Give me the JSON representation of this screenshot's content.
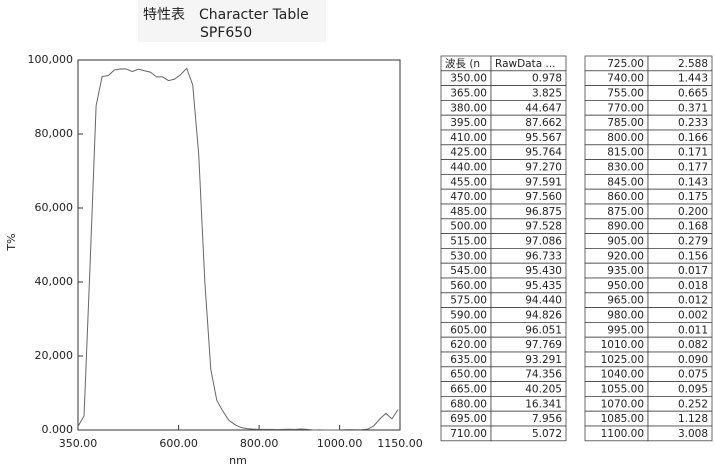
{
  "header": {
    "title": "特性表　Character Table",
    "subtitle": "SPF650"
  },
  "chart_data": {
    "type": "line",
    "xlabel": "nm",
    "ylabel": "T%",
    "color": "#666666",
    "xlim": [
      350,
      1150
    ],
    "ylim": [
      0,
      100
    ],
    "xticks": [
      {
        "value": 350,
        "label": "350.00"
      },
      {
        "value": 600,
        "label": "600.00"
      },
      {
        "value": 800,
        "label": "800.00"
      },
      {
        "value": 1000,
        "label": "1000.00"
      },
      {
        "value": 1150,
        "label": "1150.00"
      }
    ],
    "yticks": [
      {
        "value": 0,
        "label": "0.000"
      },
      {
        "value": 20,
        "label": "20,000"
      },
      {
        "value": 40,
        "label": "40,000"
      },
      {
        "value": 60,
        "label": "60,000"
      },
      {
        "value": 80,
        "label": "80,000"
      },
      {
        "value": 100,
        "label": "100,000"
      }
    ],
    "x": [
      350,
      365,
      380,
      395,
      410,
      425,
      440,
      455,
      470,
      485,
      500,
      515,
      530,
      545,
      560,
      575,
      590,
      605,
      620,
      635,
      650,
      665,
      680,
      695,
      710,
      725,
      740,
      755,
      770,
      785,
      800,
      815,
      830,
      845,
      860,
      875,
      890,
      905,
      920,
      935,
      950,
      965,
      980,
      995,
      1010,
      1025,
      1040,
      1055,
      1070,
      1085,
      1100,
      1115,
      1130,
      1145
    ],
    "values": [
      0.978,
      3.825,
      44.647,
      87.662,
      95.567,
      95.764,
      97.27,
      97.591,
      97.56,
      96.875,
      97.528,
      97.086,
      96.733,
      95.43,
      95.435,
      94.44,
      94.826,
      96.051,
      97.769,
      93.291,
      74.356,
      40.205,
      16.341,
      7.956,
      5.072,
      2.588,
      1.443,
      0.665,
      0.371,
      0.233,
      0.166,
      0.171,
      0.177,
      0.143,
      0.175,
      0.2,
      0.168,
      0.279,
      0.156,
      0.017,
      0.018,
      0.012,
      0.002,
      0.011,
      0.082,
      0.09,
      0.075,
      0.095,
      0.252,
      1.128,
      3.008,
      4.5,
      3.0,
      5.5
    ]
  },
  "tables": [
    {
      "columns": [
        "波長 (n",
        "RawData ..."
      ],
      "rows": [
        [
          "350.00",
          "0.978"
        ],
        [
          "365.00",
          "3.825"
        ],
        [
          "380.00",
          "44.647"
        ],
        [
          "395.00",
          "87.662"
        ],
        [
          "410.00",
          "95.567"
        ],
        [
          "425.00",
          "95.764"
        ],
        [
          "440.00",
          "97.270"
        ],
        [
          "455.00",
          "97.591"
        ],
        [
          "470.00",
          "97.560"
        ],
        [
          "485.00",
          "96.875"
        ],
        [
          "500.00",
          "97.528"
        ],
        [
          "515.00",
          "97.086"
        ],
        [
          "530.00",
          "96.733"
        ],
        [
          "545.00",
          "95.430"
        ],
        [
          "560.00",
          "95.435"
        ],
        [
          "575.00",
          "94.440"
        ],
        [
          "590.00",
          "94.826"
        ],
        [
          "605.00",
          "96.051"
        ],
        [
          "620.00",
          "97.769"
        ],
        [
          "635.00",
          "93.291"
        ],
        [
          "650.00",
          "74.356"
        ],
        [
          "665.00",
          "40.205"
        ],
        [
          "680.00",
          "16.341"
        ],
        [
          "695.00",
          "7.956"
        ],
        [
          "710.00",
          "5.072"
        ]
      ]
    },
    {
      "rows": [
        [
          "725.00",
          "2.588"
        ],
        [
          "740.00",
          "1.443"
        ],
        [
          "755.00",
          "0.665"
        ],
        [
          "770.00",
          "0.371"
        ],
        [
          "785.00",
          "0.233"
        ],
        [
          "800.00",
          "0.166"
        ],
        [
          "815.00",
          "0.171"
        ],
        [
          "830.00",
          "0.177"
        ],
        [
          "845.00",
          "0.143"
        ],
        [
          "860.00",
          "0.175"
        ],
        [
          "875.00",
          "0.200"
        ],
        [
          "890.00",
          "0.168"
        ],
        [
          "905.00",
          "0.279"
        ],
        [
          "920.00",
          "0.156"
        ],
        [
          "935.00",
          "0.017"
        ],
        [
          "950.00",
          "0.018"
        ],
        [
          "965.00",
          "0.012"
        ],
        [
          "980.00",
          "0.002"
        ],
        [
          "995.00",
          "0.011"
        ],
        [
          "1010.00",
          "0.082"
        ],
        [
          "1025.00",
          "0.090"
        ],
        [
          "1040.00",
          "0.075"
        ],
        [
          "1055.00",
          "0.095"
        ],
        [
          "1070.00",
          "0.252"
        ],
        [
          "1085.00",
          "1.128"
        ],
        [
          "1100.00",
          "3.008"
        ]
      ]
    }
  ]
}
